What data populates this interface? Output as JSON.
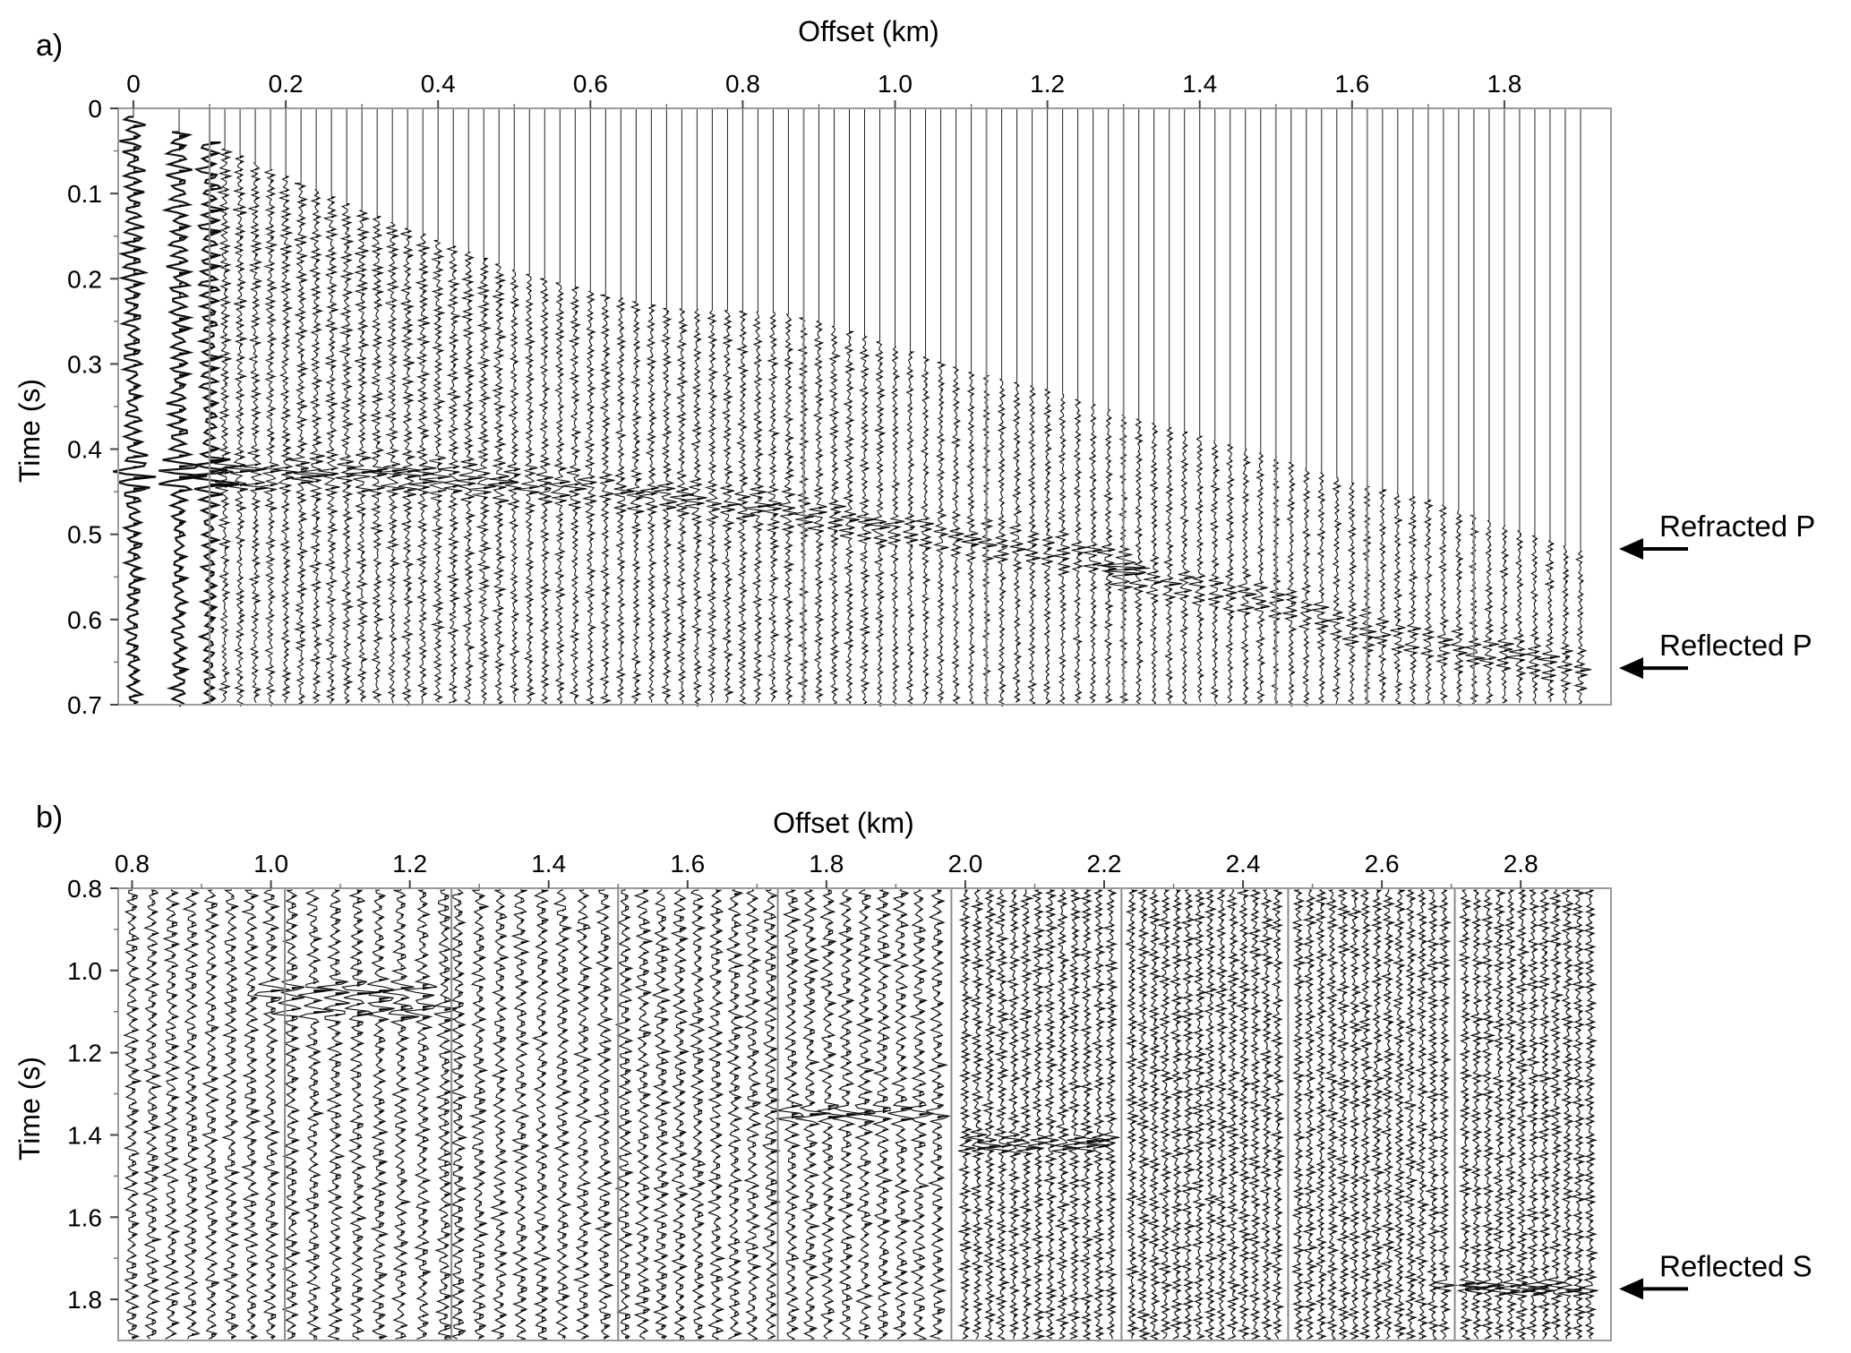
{
  "chart_data": [
    {
      "panel": "a)",
      "type": "seismic_wiggle",
      "xlabel": "Offset (km)",
      "ylabel": "Time (s)",
      "xlim": [
        -0.02,
        1.94
      ],
      "ylim": [
        0,
        0.7
      ],
      "y_inverted": true,
      "xticks": [
        0,
        0.2,
        0.4,
        0.6,
        0.8,
        1.0,
        1.2,
        1.4,
        1.6,
        1.8
      ],
      "xtick_labels": [
        "0",
        "0.2",
        "0.4",
        "0.6",
        "0.8",
        "1.0",
        "1.2",
        "1.4",
        "1.6",
        "1.8"
      ],
      "yticks": [
        0,
        0.1,
        0.2,
        0.3,
        0.4,
        0.5,
        0.6,
        0.7
      ],
      "ytick_labels": [
        "0",
        "0.1",
        "0.2",
        "0.3",
        "0.4",
        "0.5",
        "0.6",
        "0.7"
      ],
      "trace_offsets": [
        0.0,
        0.06,
        0.1,
        0.12,
        0.14,
        0.16,
        0.18,
        0.2,
        0.22,
        0.24,
        0.26,
        0.28,
        0.3,
        0.32,
        0.34,
        0.36,
        0.38,
        0.4,
        0.42,
        0.44,
        0.46,
        0.48,
        0.5,
        0.52,
        0.54,
        0.56,
        0.58,
        0.6,
        0.62,
        0.64,
        0.66,
        0.68,
        0.7,
        0.72,
        0.74,
        0.76,
        0.78,
        0.8,
        0.82,
        0.84,
        0.86,
        0.88,
        0.9,
        0.92,
        0.94,
        0.96,
        0.98,
        1.0,
        1.02,
        1.04,
        1.06,
        1.08,
        1.1,
        1.12,
        1.14,
        1.16,
        1.18,
        1.2,
        1.22,
        1.24,
        1.26,
        1.28,
        1.3,
        1.32,
        1.34,
        1.36,
        1.38,
        1.4,
        1.42,
        1.44,
        1.46,
        1.48,
        1.5,
        1.52,
        1.54,
        1.56,
        1.58,
        1.6,
        1.62,
        1.64,
        1.66,
        1.68,
        1.7,
        1.72,
        1.74,
        1.76,
        1.78,
        1.8,
        1.82,
        1.84,
        1.86,
        1.88,
        1.9
      ],
      "gather_boundaries": [
        0.1,
        0.88,
        1.12,
        1.3,
        1.5,
        1.62,
        1.76
      ],
      "first_arrival": [
        [
          0,
          0.01
        ],
        [
          0.1,
          0.04
        ],
        [
          0.2,
          0.08
        ],
        [
          0.3,
          0.12
        ],
        [
          0.4,
          0.155
        ],
        [
          0.5,
          0.19
        ],
        [
          0.6,
          0.215
        ],
        [
          0.7,
          0.235
        ],
        [
          0.85,
          0.24
        ],
        [
          0.9,
          0.25
        ],
        [
          1.0,
          0.28
        ],
        [
          1.1,
          0.31
        ],
        [
          1.2,
          0.33
        ],
        [
          1.3,
          0.36
        ],
        [
          1.4,
          0.385
        ],
        [
          1.5,
          0.41
        ],
        [
          1.6,
          0.44
        ],
        [
          1.7,
          0.46
        ],
        [
          1.8,
          0.49
        ],
        [
          1.9,
          0.52
        ]
      ],
      "refracted_p_event": [
        [
          0.3,
          0.43
        ],
        [
          0.5,
          0.44
        ],
        [
          0.7,
          0.455
        ],
        [
          0.85,
          0.47
        ],
        [
          0.9,
          0.48
        ],
        [
          1.1,
          0.505
        ],
        [
          1.2,
          0.52
        ],
        [
          1.3,
          0.535
        ]
      ],
      "reflected_p_event": [
        [
          1.3,
          0.55
        ],
        [
          1.5,
          0.58
        ],
        [
          1.6,
          0.61
        ],
        [
          1.7,
          0.63
        ],
        [
          1.8,
          0.64
        ],
        [
          1.9,
          0.66
        ]
      ],
      "annotations": [
        {
          "text": "Refracted P",
          "time": 0.515
        },
        {
          "text": "Reflected P",
          "time": 0.655
        }
      ]
    },
    {
      "panel": "b)",
      "type": "seismic_wiggle",
      "xlabel": "Offset (km)",
      "ylabel": "Time (s)",
      "xlim": [
        0.78,
        2.93
      ],
      "ylim": [
        0.8,
        1.9
      ],
      "y_inverted": true,
      "xticks": [
        0.8,
        1.0,
        1.2,
        1.4,
        1.6,
        1.8,
        2.0,
        2.2,
        2.4,
        2.6,
        2.8
      ],
      "xtick_labels": [
        "0.8",
        "1.0",
        "1.2",
        "1.4",
        "1.6",
        "1.8",
        "2.0",
        "2.2",
        "2.4",
        "2.6",
        "2.8"
      ],
      "yticks": [
        0.8,
        1.0,
        1.2,
        1.4,
        1.6,
        1.8
      ],
      "ytick_labels": [
        "0.8",
        "1.0",
        "1.2",
        "1.4",
        "1.6",
        "1.8"
      ],
      "gathers": [
        {
          "start": 0.8,
          "end": 1.0,
          "traces": 8
        },
        {
          "start": 1.03,
          "end": 1.25,
          "traces": 8
        },
        {
          "start": 1.27,
          "end": 1.48,
          "traces": 8
        },
        {
          "start": 1.51,
          "end": 1.72,
          "traces": 9
        },
        {
          "start": 1.75,
          "end": 1.96,
          "traces": 9
        },
        {
          "start": 2.0,
          "end": 2.21,
          "traces": 13
        },
        {
          "start": 2.24,
          "end": 2.45,
          "traces": 14
        },
        {
          "start": 2.48,
          "end": 2.69,
          "traces": 14
        },
        {
          "start": 2.72,
          "end": 2.9,
          "traces": 12
        }
      ],
      "gather_boundaries": [
        1.02,
        1.26,
        1.5,
        1.73,
        1.98,
        2.225,
        2.465,
        2.705
      ],
      "events": [
        [
          1.1,
          1.05
        ],
        [
          1.15,
          1.1
        ],
        [
          1.85,
          1.35
        ],
        [
          2.1,
          1.42
        ],
        [
          2.8,
          1.77
        ]
      ],
      "annotations": [
        {
          "text": "Reflected S",
          "time": 1.77
        }
      ]
    }
  ]
}
